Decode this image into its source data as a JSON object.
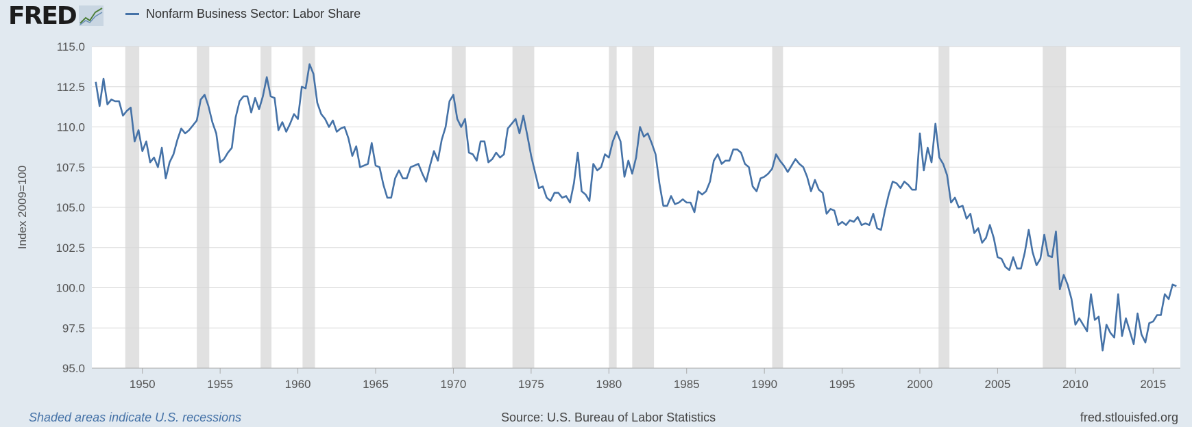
{
  "header": {
    "logo_text": "FRED",
    "legend_label": "Nonfarm Business Sector: Labor Share"
  },
  "footer": {
    "recession_note": "Shaded areas indicate U.S. recessions",
    "source": "Source: U.S. Bureau of Labor Statistics",
    "site": "fred.stlouisfed.org"
  },
  "colors": {
    "line": "#4572a7",
    "recession_shade": "#e1e1e1",
    "background": "#e1e9f0"
  },
  "chart_data": {
    "type": "line",
    "title": "",
    "xlabel": "",
    "ylabel": "Index 2009=100",
    "xlim": [
      1946.75,
      2016.75
    ],
    "ylim": [
      95.0,
      115.0
    ],
    "y_ticks": [
      "95.0",
      "97.5",
      "100.0",
      "102.5",
      "105.0",
      "107.5",
      "110.0",
      "112.5",
      "115.0"
    ],
    "x_ticks": [
      "1950",
      "1955",
      "1960",
      "1965",
      "1970",
      "1975",
      "1980",
      "1985",
      "1990",
      "1995",
      "2000",
      "2005",
      "2010",
      "2015"
    ],
    "grid": "horizontal",
    "recessions": [
      [
        1948.9,
        1949.8
      ],
      [
        1953.5,
        1954.3
      ],
      [
        1957.6,
        1958.3
      ],
      [
        1960.3,
        1961.1
      ],
      [
        1969.9,
        1970.8
      ],
      [
        1973.8,
        1975.2
      ],
      [
        1980.0,
        1980.5
      ],
      [
        1981.5,
        1982.9
      ],
      [
        1990.5,
        1991.2
      ],
      [
        2001.2,
        2001.9
      ],
      [
        2007.9,
        2009.4
      ]
    ],
    "series": [
      {
        "name": "Nonfarm Business Sector: Labor Share",
        "color": "#4572a7",
        "points": [
          [
            1947.0,
            112.8
          ],
          [
            1947.25,
            111.3
          ],
          [
            1947.5,
            113.0
          ],
          [
            1947.75,
            111.4
          ],
          [
            1948.0,
            111.7
          ],
          [
            1948.25,
            111.6
          ],
          [
            1948.5,
            111.6
          ],
          [
            1948.75,
            110.7
          ],
          [
            1949.0,
            111.0
          ],
          [
            1949.25,
            111.2
          ],
          [
            1949.5,
            109.1
          ],
          [
            1949.75,
            109.8
          ],
          [
            1950.0,
            108.5
          ],
          [
            1950.25,
            109.1
          ],
          [
            1950.5,
            107.8
          ],
          [
            1950.75,
            108.1
          ],
          [
            1951.0,
            107.5
          ],
          [
            1951.25,
            108.7
          ],
          [
            1951.5,
            106.8
          ],
          [
            1951.75,
            107.8
          ],
          [
            1952.0,
            108.3
          ],
          [
            1952.25,
            109.2
          ],
          [
            1952.5,
            109.9
          ],
          [
            1952.75,
            109.6
          ],
          [
            1953.0,
            109.8
          ],
          [
            1953.25,
            110.1
          ],
          [
            1953.5,
            110.4
          ],
          [
            1953.75,
            111.7
          ],
          [
            1954.0,
            112.0
          ],
          [
            1954.25,
            111.3
          ],
          [
            1954.5,
            110.3
          ],
          [
            1954.75,
            109.6
          ],
          [
            1955.0,
            107.8
          ],
          [
            1955.25,
            108.0
          ],
          [
            1955.5,
            108.4
          ],
          [
            1955.75,
            108.7
          ],
          [
            1956.0,
            110.6
          ],
          [
            1956.25,
            111.6
          ],
          [
            1956.5,
            111.9
          ],
          [
            1956.75,
            111.9
          ],
          [
            1957.0,
            110.9
          ],
          [
            1957.25,
            111.8
          ],
          [
            1957.5,
            111.1
          ],
          [
            1957.75,
            111.9
          ],
          [
            1958.0,
            113.1
          ],
          [
            1958.25,
            111.9
          ],
          [
            1958.5,
            111.8
          ],
          [
            1958.75,
            109.8
          ],
          [
            1959.0,
            110.3
          ],
          [
            1959.25,
            109.7
          ],
          [
            1959.5,
            110.2
          ],
          [
            1959.75,
            110.8
          ],
          [
            1960.0,
            110.5
          ],
          [
            1960.25,
            112.5
          ],
          [
            1960.5,
            112.4
          ],
          [
            1960.75,
            113.9
          ],
          [
            1961.0,
            113.3
          ],
          [
            1961.25,
            111.5
          ],
          [
            1961.5,
            110.8
          ],
          [
            1961.75,
            110.5
          ],
          [
            1962.0,
            110.0
          ],
          [
            1962.25,
            110.4
          ],
          [
            1962.5,
            109.7
          ],
          [
            1962.75,
            109.9
          ],
          [
            1963.0,
            110.0
          ],
          [
            1963.25,
            109.3
          ],
          [
            1963.5,
            108.2
          ],
          [
            1963.75,
            108.8
          ],
          [
            1964.0,
            107.5
          ],
          [
            1964.25,
            107.6
          ],
          [
            1964.5,
            107.7
          ],
          [
            1964.75,
            109.0
          ],
          [
            1965.0,
            107.6
          ],
          [
            1965.25,
            107.5
          ],
          [
            1965.5,
            106.4
          ],
          [
            1965.75,
            105.6
          ],
          [
            1966.0,
            105.6
          ],
          [
            1966.25,
            106.8
          ],
          [
            1966.5,
            107.3
          ],
          [
            1966.75,
            106.8
          ],
          [
            1967.0,
            106.8
          ],
          [
            1967.25,
            107.5
          ],
          [
            1967.5,
            107.6
          ],
          [
            1967.75,
            107.7
          ],
          [
            1968.0,
            107.1
          ],
          [
            1968.25,
            106.6
          ],
          [
            1968.5,
            107.6
          ],
          [
            1968.75,
            108.5
          ],
          [
            1969.0,
            107.9
          ],
          [
            1969.25,
            109.2
          ],
          [
            1969.5,
            110.0
          ],
          [
            1969.75,
            111.6
          ],
          [
            1970.0,
            112.0
          ],
          [
            1970.25,
            110.5
          ],
          [
            1970.5,
            110.0
          ],
          [
            1970.75,
            110.5
          ],
          [
            1971.0,
            108.4
          ],
          [
            1971.25,
            108.3
          ],
          [
            1971.5,
            107.9
          ],
          [
            1971.75,
            109.1
          ],
          [
            1972.0,
            109.1
          ],
          [
            1972.25,
            107.8
          ],
          [
            1972.5,
            108.0
          ],
          [
            1972.75,
            108.4
          ],
          [
            1973.0,
            108.1
          ],
          [
            1973.25,
            108.3
          ],
          [
            1973.5,
            109.9
          ],
          [
            1973.75,
            110.2
          ],
          [
            1974.0,
            110.5
          ],
          [
            1974.25,
            109.6
          ],
          [
            1974.5,
            110.7
          ],
          [
            1974.75,
            109.5
          ],
          [
            1975.0,
            108.2
          ],
          [
            1975.25,
            107.2
          ],
          [
            1975.5,
            106.2
          ],
          [
            1975.75,
            106.3
          ],
          [
            1976.0,
            105.6
          ],
          [
            1976.25,
            105.4
          ],
          [
            1976.5,
            105.9
          ],
          [
            1976.75,
            105.9
          ],
          [
            1977.0,
            105.6
          ],
          [
            1977.25,
            105.7
          ],
          [
            1977.5,
            105.3
          ],
          [
            1977.75,
            106.5
          ],
          [
            1978.0,
            108.4
          ],
          [
            1978.25,
            106.0
          ],
          [
            1978.5,
            105.8
          ],
          [
            1978.75,
            105.4
          ],
          [
            1979.0,
            107.7
          ],
          [
            1979.25,
            107.3
          ],
          [
            1979.5,
            107.5
          ],
          [
            1979.75,
            108.3
          ],
          [
            1980.0,
            108.1
          ],
          [
            1980.25,
            109.1
          ],
          [
            1980.5,
            109.7
          ],
          [
            1980.75,
            109.1
          ],
          [
            1981.0,
            106.9
          ],
          [
            1981.25,
            107.9
          ],
          [
            1981.5,
            107.1
          ],
          [
            1981.75,
            108.1
          ],
          [
            1982.0,
            110.0
          ],
          [
            1982.25,
            109.4
          ],
          [
            1982.5,
            109.6
          ],
          [
            1982.75,
            109.0
          ],
          [
            1983.0,
            108.3
          ],
          [
            1983.25,
            106.5
          ],
          [
            1983.5,
            105.1
          ],
          [
            1983.75,
            105.1
          ],
          [
            1984.0,
            105.7
          ],
          [
            1984.25,
            105.2
          ],
          [
            1984.5,
            105.3
          ],
          [
            1984.75,
            105.5
          ],
          [
            1985.0,
            105.3
          ],
          [
            1985.25,
            105.3
          ],
          [
            1985.5,
            104.7
          ],
          [
            1985.75,
            106.0
          ],
          [
            1986.0,
            105.8
          ],
          [
            1986.25,
            106.0
          ],
          [
            1986.5,
            106.6
          ],
          [
            1986.75,
            107.9
          ],
          [
            1987.0,
            108.3
          ],
          [
            1987.25,
            107.7
          ],
          [
            1987.5,
            107.9
          ],
          [
            1987.75,
            107.9
          ],
          [
            1988.0,
            108.6
          ],
          [
            1988.25,
            108.6
          ],
          [
            1988.5,
            108.4
          ],
          [
            1988.75,
            107.7
          ],
          [
            1989.0,
            107.5
          ],
          [
            1989.25,
            106.3
          ],
          [
            1989.5,
            106.0
          ],
          [
            1989.75,
            106.8
          ],
          [
            1990.0,
            106.9
          ],
          [
            1990.25,
            107.1
          ],
          [
            1990.5,
            107.4
          ],
          [
            1990.75,
            108.3
          ],
          [
            1991.0,
            107.9
          ],
          [
            1991.25,
            107.6
          ],
          [
            1991.5,
            107.2
          ],
          [
            1991.75,
            107.6
          ],
          [
            1992.0,
            108.0
          ],
          [
            1992.25,
            107.7
          ],
          [
            1992.5,
            107.5
          ],
          [
            1992.75,
            106.9
          ],
          [
            1993.0,
            106.0
          ],
          [
            1993.25,
            106.7
          ],
          [
            1993.5,
            106.1
          ],
          [
            1993.75,
            105.9
          ],
          [
            1994.0,
            104.6
          ],
          [
            1994.25,
            104.9
          ],
          [
            1994.5,
            104.8
          ],
          [
            1994.75,
            103.9
          ],
          [
            1995.0,
            104.1
          ],
          [
            1995.25,
            103.9
          ],
          [
            1995.5,
            104.2
          ],
          [
            1995.75,
            104.1
          ],
          [
            1996.0,
            104.4
          ],
          [
            1996.25,
            103.9
          ],
          [
            1996.5,
            104.0
          ],
          [
            1996.75,
            103.9
          ],
          [
            1997.0,
            104.6
          ],
          [
            1997.25,
            103.7
          ],
          [
            1997.5,
            103.6
          ],
          [
            1997.75,
            104.8
          ],
          [
            1998.0,
            105.8
          ],
          [
            1998.25,
            106.6
          ],
          [
            1998.5,
            106.5
          ],
          [
            1998.75,
            106.2
          ],
          [
            1999.0,
            106.6
          ],
          [
            1999.25,
            106.4
          ],
          [
            1999.5,
            106.1
          ],
          [
            1999.75,
            106.1
          ],
          [
            2000.0,
            109.6
          ],
          [
            2000.25,
            107.3
          ],
          [
            2000.5,
            108.7
          ],
          [
            2000.75,
            107.8
          ],
          [
            2001.0,
            110.2
          ],
          [
            2001.25,
            108.1
          ],
          [
            2001.5,
            107.7
          ],
          [
            2001.75,
            107.0
          ],
          [
            2002.0,
            105.3
          ],
          [
            2002.25,
            105.6
          ],
          [
            2002.5,
            105.0
          ],
          [
            2002.75,
            105.1
          ],
          [
            2003.0,
            104.3
          ],
          [
            2003.25,
            104.6
          ],
          [
            2003.5,
            103.4
          ],
          [
            2003.75,
            103.7
          ],
          [
            2004.0,
            102.8
          ],
          [
            2004.25,
            103.1
          ],
          [
            2004.5,
            103.9
          ],
          [
            2004.75,
            103.1
          ],
          [
            2005.0,
            101.9
          ],
          [
            2005.25,
            101.8
          ],
          [
            2005.5,
            101.3
          ],
          [
            2005.75,
            101.1
          ],
          [
            2006.0,
            101.9
          ],
          [
            2006.25,
            101.2
          ],
          [
            2006.5,
            101.2
          ],
          [
            2006.75,
            102.2
          ],
          [
            2007.0,
            103.6
          ],
          [
            2007.25,
            102.2
          ],
          [
            2007.5,
            101.4
          ],
          [
            2007.75,
            101.8
          ],
          [
            2008.0,
            103.3
          ],
          [
            2008.25,
            102.0
          ],
          [
            2008.5,
            101.9
          ],
          [
            2008.75,
            103.5
          ],
          [
            2009.0,
            99.9
          ],
          [
            2009.25,
            100.8
          ],
          [
            2009.5,
            100.2
          ],
          [
            2009.75,
            99.3
          ],
          [
            2010.0,
            97.7
          ],
          [
            2010.25,
            98.1
          ],
          [
            2010.5,
            97.7
          ],
          [
            2010.75,
            97.3
          ],
          [
            2011.0,
            99.6
          ],
          [
            2011.25,
            98.0
          ],
          [
            2011.5,
            98.2
          ],
          [
            2011.75,
            96.1
          ],
          [
            2012.0,
            97.7
          ],
          [
            2012.25,
            97.2
          ],
          [
            2012.5,
            96.9
          ],
          [
            2012.75,
            99.6
          ],
          [
            2013.0,
            97.0
          ],
          [
            2013.25,
            98.1
          ],
          [
            2013.5,
            97.3
          ],
          [
            2013.75,
            96.5
          ],
          [
            2014.0,
            98.4
          ],
          [
            2014.25,
            97.1
          ],
          [
            2014.5,
            96.6
          ],
          [
            2014.75,
            97.8
          ],
          [
            2015.0,
            97.9
          ],
          [
            2015.25,
            98.3
          ],
          [
            2015.5,
            98.3
          ],
          [
            2015.75,
            99.6
          ],
          [
            2016.0,
            99.3
          ],
          [
            2016.25,
            100.2
          ],
          [
            2016.5,
            100.1
          ]
        ]
      }
    ]
  }
}
